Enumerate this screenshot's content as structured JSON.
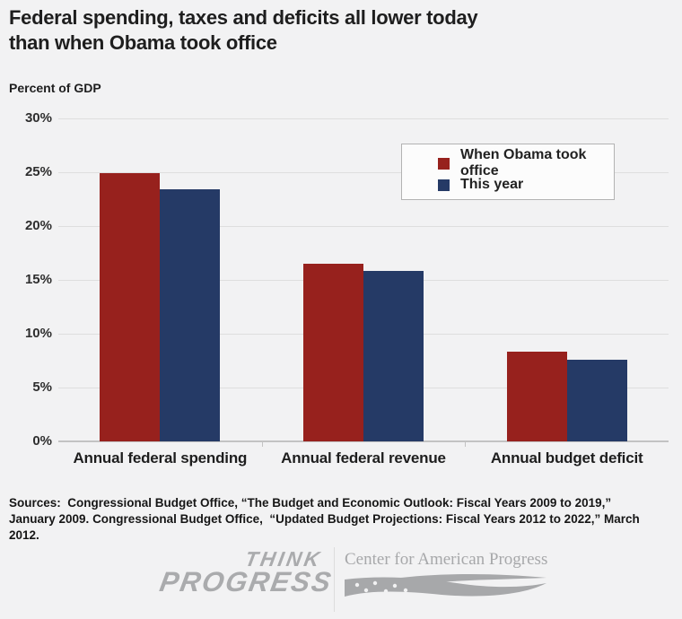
{
  "header": {
    "title_lines": [
      "Federal spending, taxes and deficits all lower today",
      "than when Obama took office"
    ],
    "subtitle": "Percent of GDP"
  },
  "chart_data": {
    "type": "bar",
    "title": "Federal spending, taxes and deficits all lower today than when Obama took office",
    "ylabel": "Percent of GDP",
    "categories": [
      "Annual federal spending",
      "Annual federal revenue",
      "Annual budget deficit"
    ],
    "series": [
      {
        "name": "When Obama took office",
        "color": "#97211d",
        "values": [
          24.9,
          16.5,
          8.3
        ]
      },
      {
        "name": "This year",
        "color": "#253a66",
        "values": [
          23.4,
          15.8,
          7.6
        ]
      }
    ],
    "ylim": [
      0,
      30
    ],
    "ytick_step": 5,
    "ytick_labels": [
      "0%",
      "5%",
      "10%",
      "15%",
      "20%",
      "25%",
      "30%"
    ],
    "grid": true,
    "legend_position": "top-right"
  },
  "sources": "Sources:  Congressional Budget Office, “The Budget and Economic Outlook: Fiscal Years 2009 to 2019,” January 2009. Congressional Budget Office,  “Updated Budget Projections: Fiscal Years 2012 to 2022,” March 2012.",
  "footer": {
    "thinkprogress_line1": "THINK",
    "thinkprogress_line2": "PROGRESS",
    "cap_text": "Center for American Progress"
  },
  "colors": {
    "obama_red": "#97211d",
    "this_year_blue": "#253a66",
    "background": "#f2f2f3",
    "gridline": "#dedede",
    "logo_gray": "#a7a8aa"
  }
}
